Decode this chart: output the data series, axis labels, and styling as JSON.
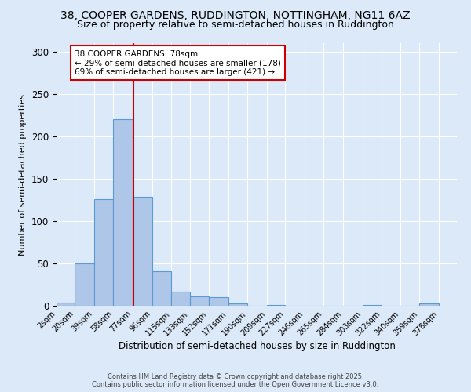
{
  "title_line1": "38, COOPER GARDENS, RUDDINGTON, NOTTINGHAM, NG11 6AZ",
  "title_line2": "Size of property relative to semi-detached houses in Ruddington",
  "xlabel": "Distribution of semi-detached houses by size in Ruddington",
  "ylabel": "Number of semi-detached properties",
  "bin_labels": [
    "2sqm",
    "20sqm",
    "39sqm",
    "58sqm",
    "77sqm",
    "96sqm",
    "115sqm",
    "133sqm",
    "152sqm",
    "171sqm",
    "190sqm",
    "209sqm",
    "227sqm",
    "246sqm",
    "265sqm",
    "284sqm",
    "303sqm",
    "322sqm",
    "340sqm",
    "359sqm",
    "378sqm"
  ],
  "bin_edges": [
    2,
    20,
    39,
    58,
    77,
    96,
    115,
    133,
    152,
    171,
    190,
    209,
    227,
    246,
    265,
    284,
    303,
    322,
    340,
    359,
    378
  ],
  "bar_heights": [
    4,
    50,
    126,
    220,
    129,
    41,
    17,
    11,
    10,
    3,
    0,
    1,
    0,
    0,
    0,
    0,
    1,
    0,
    0,
    3
  ],
  "bar_color": "#aec6e8",
  "bar_edge_color": "#5b9bd5",
  "property_value": 78,
  "vline_color": "#cc0000",
  "annotation_text": "38 COOPER GARDENS: 78sqm\n← 29% of semi-detached houses are smaller (178)\n69% of semi-detached houses are larger (421) →",
  "annotation_box_color": "#ffffff",
  "annotation_box_edge": "#cc0000",
  "ylim": [
    0,
    310
  ],
  "yticks": [
    0,
    50,
    100,
    150,
    200,
    250,
    300
  ],
  "footer_line1": "Contains HM Land Registry data © Crown copyright and database right 2025.",
  "footer_line2": "Contains public sector information licensed under the Open Government Licence v3.0.",
  "bg_color": "#dce9f8",
  "plot_bg_color": "#dce9f8",
  "grid_color": "#ffffff",
  "title_fontsize": 10,
  "subtitle_fontsize": 9
}
